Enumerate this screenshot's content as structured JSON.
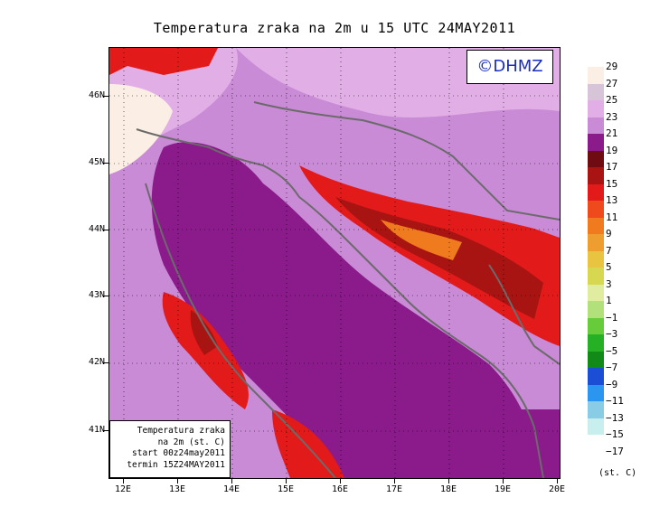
{
  "title": "Temperatura zraka na 2m u 15 UTC 24MAY2011",
  "badge": "©DHMZ",
  "info": {
    "line1": "Temperatura zraka",
    "line2": "na 2m (st. C)",
    "line3": "start 00z24may2011",
    "line4": "termin 15Z24MAY2011"
  },
  "lat_labels": [
    "46N",
    "45N",
    "44N",
    "43N",
    "42N",
    "41N"
  ],
  "lon_labels": [
    "12E",
    "13E",
    "14E",
    "15E",
    "16E",
    "17E",
    "18E",
    "19E",
    "20E"
  ],
  "colorbar": {
    "labels": [
      "29",
      "27",
      "25",
      "23",
      "21",
      "19",
      "17",
      "15",
      "13",
      "11",
      "9",
      "7",
      "5",
      "3",
      "1",
      "−1",
      "−3",
      "−5",
      "−7",
      "−9",
      "−11",
      "−13",
      "−15",
      "−17"
    ],
    "colors": [
      "#fbeee4",
      "#d8c4d8",
      "#e2aee6",
      "#c98ad6",
      "#8b1a8a",
      "#6e0c12",
      "#a81412",
      "#e21a1a",
      "#ee4a1c",
      "#f07a1e",
      "#ee9e2e",
      "#e8c440",
      "#d8d850",
      "#e0eca0",
      "#b2e07a",
      "#66cc3a",
      "#26b026",
      "#128a18",
      "#1a4ed4",
      "#2a96f0",
      "#88cce6",
      "#c8eeee",
      "#ffffff"
    ],
    "unit": "(st. C)"
  }
}
